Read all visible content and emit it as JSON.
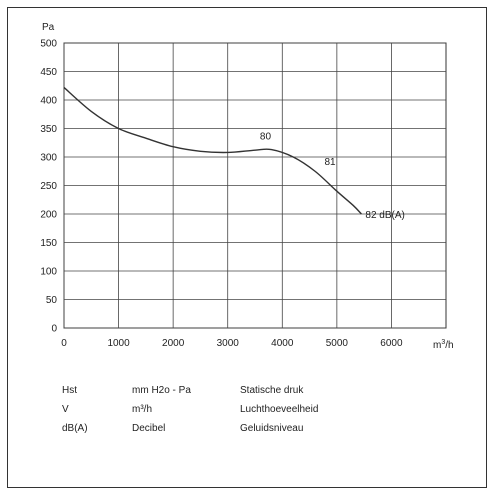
{
  "chart_data": {
    "type": "line",
    "ylabel": "Pa",
    "xlabel_prefix": "m",
    "xlabel_sup": "3",
    "xlabel_suffix": "/h",
    "xlim": [
      0,
      7000
    ],
    "ylim": [
      0,
      500
    ],
    "xticks": [
      0,
      1000,
      2000,
      3000,
      4000,
      5000,
      6000
    ],
    "yticks": [
      0,
      50,
      100,
      150,
      200,
      250,
      300,
      350,
      400,
      450,
      500
    ],
    "grid": true,
    "series": [
      {
        "x": [
          0,
          500,
          1000,
          1500,
          2000,
          2500,
          3000,
          3500,
          3800,
          4200,
          4600,
          5000,
          5300,
          5450
        ],
        "y": [
          422,
          380,
          350,
          333,
          318,
          310,
          308,
          312,
          313,
          300,
          275,
          240,
          215,
          200
        ]
      }
    ],
    "annotations": [
      {
        "text": "80",
        "x": 3700,
        "y": 313
      },
      {
        "text": "81",
        "x": 4700,
        "y": 272
      },
      {
        "text": "82 dB(A)",
        "x": 5450,
        "y": 200
      }
    ]
  },
  "legend": [
    {
      "abbr": "Hst",
      "unit": "mm H2o - Pa",
      "desc": "Statische druk"
    },
    {
      "abbr": "V",
      "unit": "m³/h",
      "desc": "Luchthoeveelheid"
    },
    {
      "abbr": "dB(A)",
      "unit": "Decibel",
      "desc": "Geluidsniveau"
    }
  ]
}
